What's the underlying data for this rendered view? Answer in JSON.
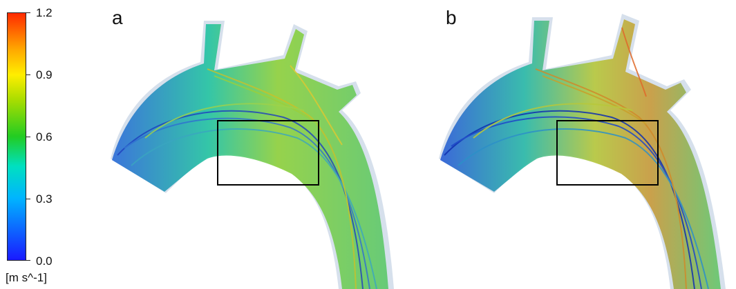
{
  "colorbar": {
    "ticks": [
      "1.2",
      "0.9",
      "0.6",
      "0.3",
      "0.0"
    ],
    "unit": "[m s^-1]"
  },
  "panels": [
    {
      "label": "a"
    },
    {
      "label": "b"
    }
  ]
}
